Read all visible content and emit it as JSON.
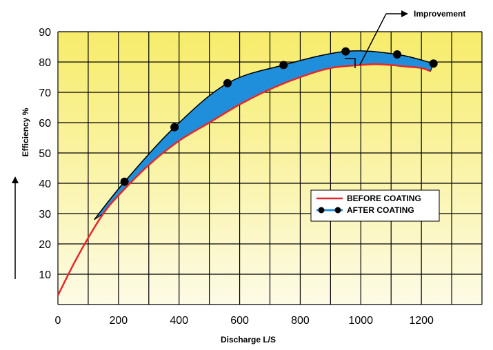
{
  "chart_data": {
    "type": "line",
    "xlabel": "Discharge L/S",
    "ylabel": "Efficiency %",
    "xlim": [
      0,
      1400
    ],
    "ylim": [
      0,
      90
    ],
    "x_ticks": [
      "0",
      "200",
      "400",
      "600",
      "800",
      "1000",
      "1200"
    ],
    "y_ticks": [
      "10",
      "20",
      "30",
      "40",
      "50",
      "60",
      "70",
      "80",
      "90"
    ],
    "grid": true,
    "legend_position": "right",
    "annotation": "Improvement",
    "series": [
      {
        "name": "BEFORE COATING",
        "color": "#e8262a",
        "x": [
          0,
          50,
          100,
          150,
          200,
          300,
          400,
          500,
          600,
          700,
          800,
          900,
          1000,
          1050,
          1100,
          1150,
          1200,
          1230
        ],
        "y": [
          3,
          13,
          22,
          30,
          36,
          46,
          54,
          60,
          66,
          71,
          75,
          78,
          79,
          79.3,
          79,
          78.5,
          78,
          77
        ]
      },
      {
        "name": "AFTER COATING",
        "color": "#1f8fdb",
        "x": [
          220,
          385,
          560,
          745,
          950,
          1120,
          1240
        ],
        "y": [
          40.5,
          58.5,
          73,
          79,
          83.5,
          82.5,
          79.5
        ]
      }
    ]
  }
}
